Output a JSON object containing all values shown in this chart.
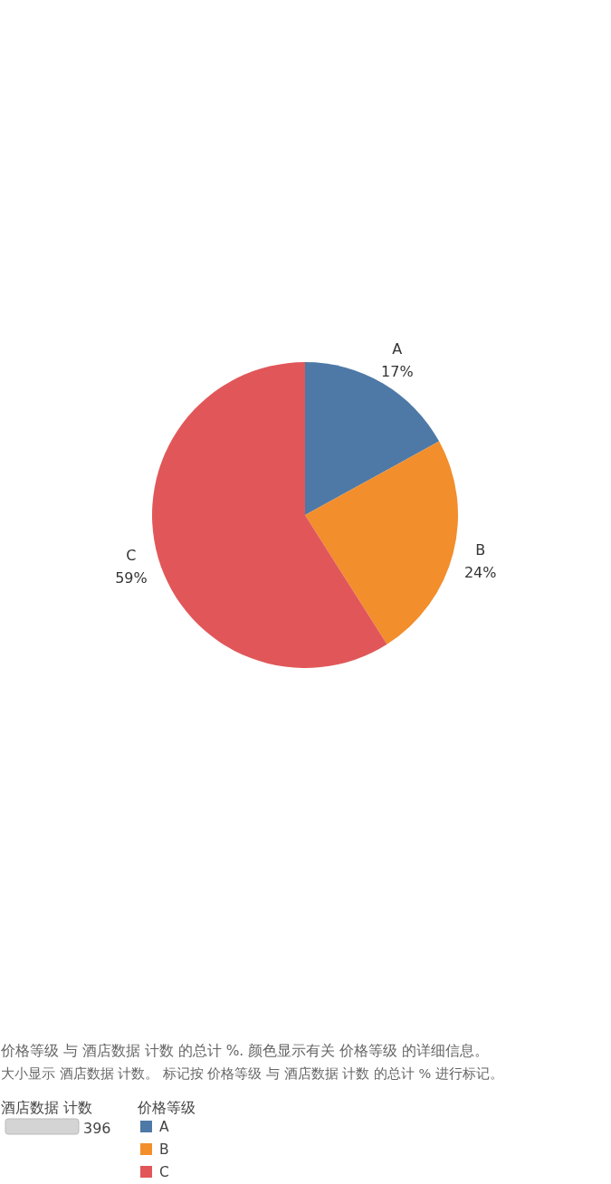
{
  "chart_data": {
    "type": "pie",
    "categories": [
      "A",
      "B",
      "C"
    ],
    "values": [
      17,
      24,
      59
    ],
    "colors": [
      "#4e79a7",
      "#f28e2b",
      "#e15759"
    ],
    "value_labels": [
      "17%",
      "24%",
      "59%"
    ],
    "legend": "bottom",
    "legend_title": "价格等级",
    "annotations": [
      "价格等级 与 酒店数据 计数 的总计 %. 颜色显示有关 价格等级 的详细信息。",
      "大小显示 酒店数据 计数。 标记按 价格等级 与 酒店数据 计数 的总计 % 进行标记。",
      "酒店数据 计数",
      "396"
    ]
  }
}
